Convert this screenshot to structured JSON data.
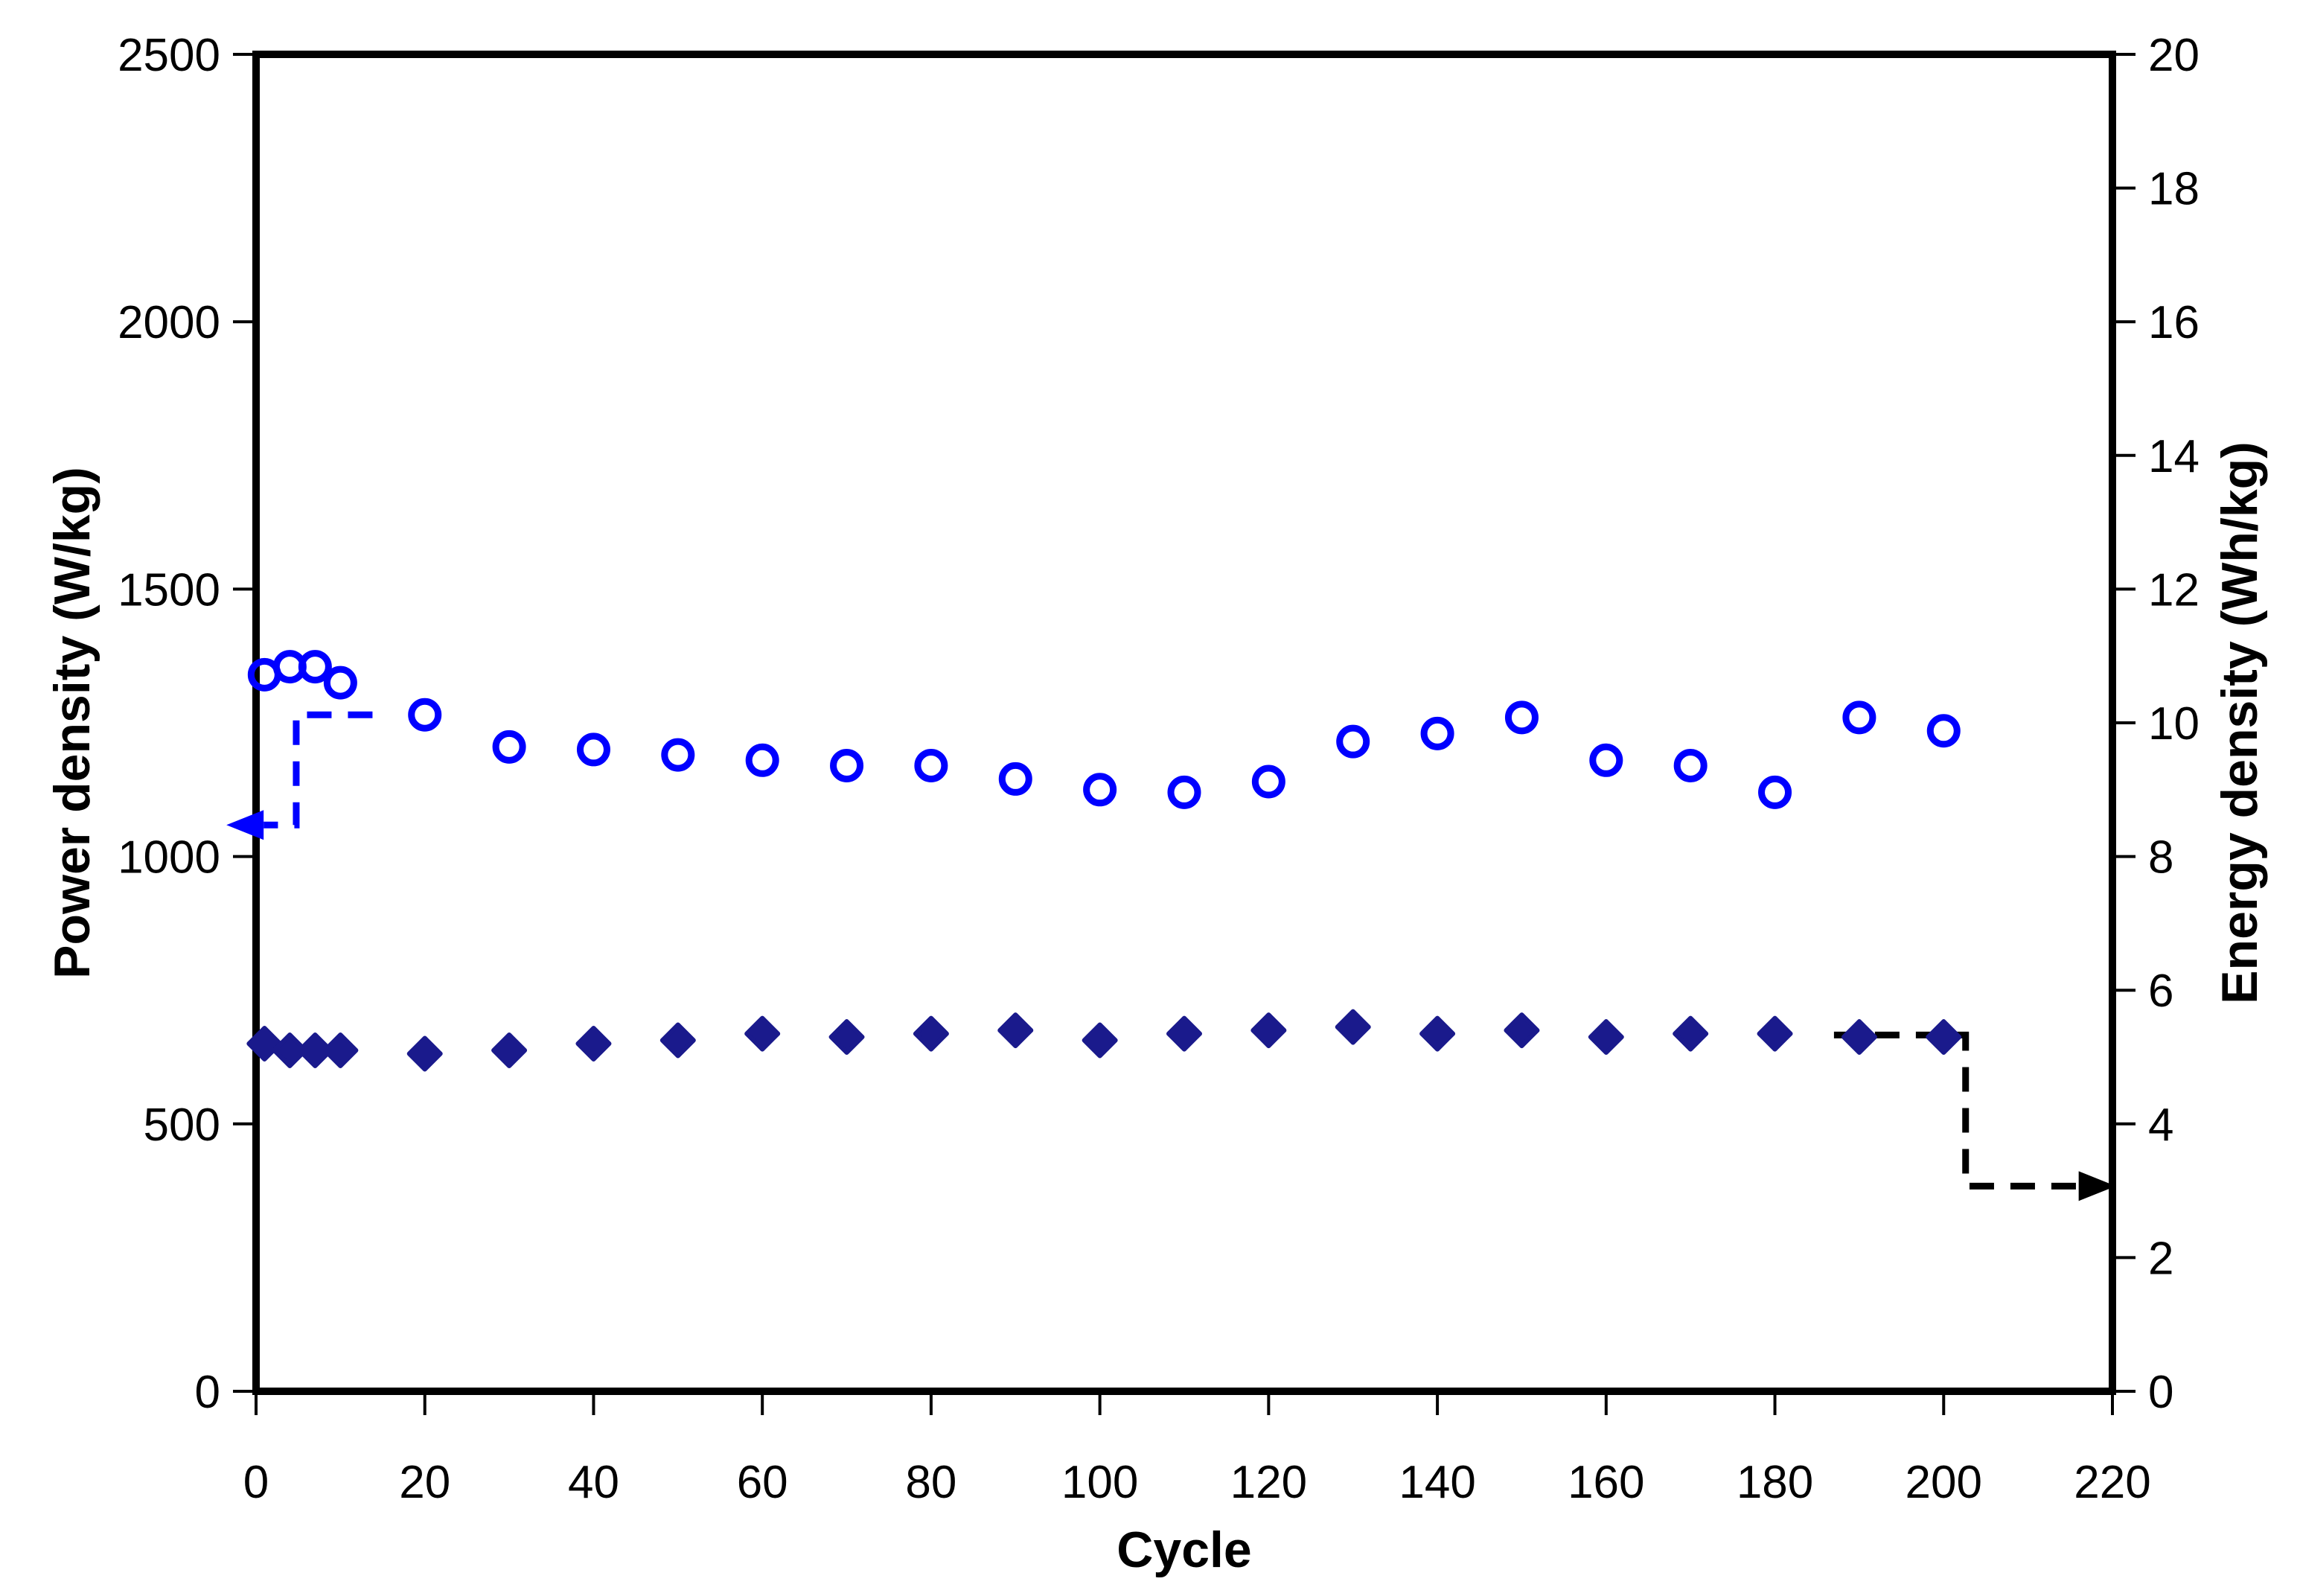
{
  "figure": {
    "background": "#ffffff",
    "frame_color": "#000000"
  },
  "chart_data": {
    "type": "scatter",
    "title": "",
    "xlabel": "Cycle",
    "ylabel_left": "Power density (W/kg)",
    "ylabel_right": "Energy density (Wh/kg)",
    "xlim": [
      0,
      220
    ],
    "ylim_left": [
      0,
      2500
    ],
    "ylim_right": [
      0,
      20
    ],
    "x_ticks": [
      0,
      20,
      40,
      60,
      80,
      100,
      120,
      140,
      160,
      180,
      200,
      220
    ],
    "left_ticks": [
      0,
      500,
      1000,
      1500,
      2000,
      2500
    ],
    "right_ticks": [
      0,
      2,
      4,
      6,
      8,
      10,
      12,
      14,
      16,
      18,
      20
    ],
    "grid": false,
    "legend": "none",
    "series": [
      {
        "name": "Power density",
        "axis": "left",
        "marker": "circle-open",
        "color": "#0000ff",
        "x": [
          1,
          4,
          7,
          10,
          20,
          30,
          40,
          50,
          60,
          70,
          80,
          90,
          100,
          110,
          120,
          130,
          140,
          150,
          160,
          170,
          180,
          190,
          200
        ],
        "y": [
          1340,
          1355,
          1355,
          1325,
          1265,
          1205,
          1200,
          1190,
          1180,
          1170,
          1170,
          1145,
          1125,
          1120,
          1140,
          1215,
          1230,
          1260,
          1180,
          1170,
          1120,
          1260,
          1235
        ]
      },
      {
        "name": "Energy density",
        "axis": "right",
        "marker": "diamond-filled",
        "color": "#1a1a8c",
        "x": [
          1,
          4,
          7,
          10,
          20,
          30,
          40,
          50,
          60,
          70,
          80,
          90,
          100,
          110,
          120,
          130,
          140,
          150,
          160,
          170,
          180,
          190,
          200
        ],
        "y": [
          5.2,
          5.1,
          5.1,
          5.1,
          5.05,
          5.1,
          5.2,
          5.25,
          5.35,
          5.3,
          5.35,
          5.4,
          5.25,
          5.35,
          5.4,
          5.45,
          5.35,
          5.4,
          5.3,
          5.35,
          5.35,
          5.3,
          5.3
        ]
      }
    ],
    "annotations": [
      {
        "name": "power-to-left-axis-arrow",
        "color": "#0000ff",
        "axis": "left",
        "style": "dashed",
        "points": [
          [
            13.8,
            1265
          ],
          [
            4.76,
            1265
          ],
          [
            4.76,
            1059
          ],
          [
            0.9,
            1059
          ]
        ],
        "arrow": "left"
      },
      {
        "name": "energy-to-right-axis-arrow",
        "color": "#000000",
        "axis": "right",
        "style": "dashed",
        "points": [
          [
            187,
            5.33
          ],
          [
            202.6,
            5.33
          ],
          [
            202.6,
            3.07
          ],
          [
            216,
            3.07
          ]
        ],
        "arrow": "right"
      }
    ]
  }
}
